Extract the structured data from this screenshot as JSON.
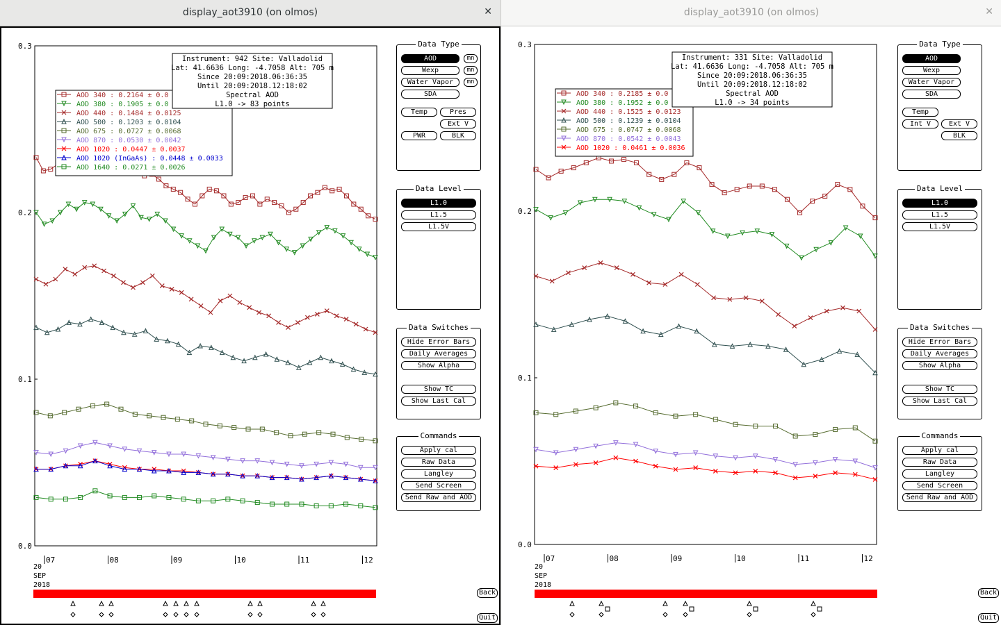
{
  "windows": [
    {
      "title": "display_aot3910 (on olmos)",
      "close_icon": "✕",
      "active": true,
      "info": [
        "Instrument: 942 Site: Valladolid",
        "Lat: 41.6636 Long: -4.7058 Alt: 705 m",
        "Since 20:09:2018.06:36:35",
        "Until 20:09:2018.12:18:02",
        "Spectral AOD",
        "L1.0 -> 83 points"
      ],
      "legend": [
        {
          "label": "AOD 340  : 0.2164 ± 0.0",
          "color": "#a52a2a",
          "marker": "square"
        },
        {
          "label": "AOD 380  : 0.1905 ± 0.0",
          "color": "#228b22",
          "marker": "tri-down"
        },
        {
          "label": "AOD 440  : 0.1484 ± 0.0125",
          "color": "#a52a2a",
          "marker": "x"
        },
        {
          "label": "AOD 500  : 0.1203 ± 0.0104",
          "color": "#2f4f4f",
          "marker": "tri-up"
        },
        {
          "label": "AOD 675  : 0.0727 ± 0.0068",
          "color": "#556b2f",
          "marker": "square"
        },
        {
          "label": "AOD 870  : 0.0530 ± 0.0042",
          "color": "#9370db",
          "marker": "tri-down"
        },
        {
          "label": "AOD 1020  : 0.0447 ± 0.0037",
          "color": "#ff0000",
          "marker": "x"
        },
        {
          "label": "AOD 1020 (InGaAs)  : 0.0448 ± 0.0033",
          "color": "#0000cd",
          "marker": "tri-up"
        },
        {
          "label": "AOD 1640  : 0.0271 ± 0.0026",
          "color": "#228b22",
          "marker": "square"
        }
      ],
      "data_type": {
        "title": "Data Type",
        "aod": "AOD",
        "wexp": "Wexp",
        "water_vapor": "Water Vapor",
        "sda": "SDA",
        "mn": "mn",
        "temp": "Temp",
        "pres": "Pres",
        "ext_v": "Ext V",
        "pwr": "PWR",
        "blk": "BLK"
      },
      "data_level": {
        "title": "Data Level",
        "items": [
          "L1.0",
          "L1.5",
          "L1.5V"
        ]
      },
      "data_switches": {
        "title": "Data Switches",
        "items": [
          "Hide Error Bars",
          "Daily Averages",
          "Show Alpha",
          "Show TC",
          "Show Last Cal"
        ]
      },
      "commands": {
        "title": "Commands",
        "items": [
          "Apply cal",
          "Raw Data",
          "Langley",
          "Send Screen",
          "Send Raw and AOD"
        ]
      },
      "date": {
        "day": "20",
        "month": "SEP",
        "year": "2018"
      },
      "back": "Back",
      "quit": "Quit"
    },
    {
      "title": "display_aot3910 (on olmos)",
      "close_icon": "✕",
      "active": false,
      "info": [
        "Instrument: 331 Site: Valladolid",
        "Lat: 41.6636 Long: -4.7058 Alt: 705 m",
        "Since 20:09:2018.06:36:35",
        "Until 20:09:2018.12:18:02",
        "Spectral AOD",
        "L1.0 -> 34 points"
      ],
      "legend": [
        {
          "label": "AOD 340  : 0.2185 ± 0.0",
          "color": "#a52a2a",
          "marker": "square"
        },
        {
          "label": "AOD 380  : 0.1952 ± 0.0",
          "color": "#228b22",
          "marker": "tri-down"
        },
        {
          "label": "AOD 440  : 0.1525 ± 0.0123",
          "color": "#a52a2a",
          "marker": "x"
        },
        {
          "label": "AOD 500  : 0.1239 ± 0.0104",
          "color": "#2f4f4f",
          "marker": "tri-up"
        },
        {
          "label": "AOD 675  : 0.0747 ± 0.0068",
          "color": "#556b2f",
          "marker": "square"
        },
        {
          "label": "AOD 870  : 0.0542 ± 0.0043",
          "color": "#9370db",
          "marker": "tri-down"
        },
        {
          "label": "AOD 1020  : 0.0461 ± 0.0036",
          "color": "#ff0000",
          "marker": "x"
        }
      ],
      "data_type": {
        "title": "Data Type",
        "aod": "AOD",
        "wexp": "Wexp",
        "water_vapor": "Water Vapor",
        "sda": "SDA",
        "temp": "Temp",
        "int_v": "Int V",
        "ext_v": "Ext V",
        "blk": "BLK"
      },
      "data_level": {
        "title": "Data Level",
        "items": [
          "L1.0",
          "L1.5",
          "L1.5V"
        ]
      },
      "data_switches": {
        "title": "Data Switches",
        "items": [
          "Hide Error Bars",
          "Daily Averages",
          "Show Alpha",
          "Show TC",
          "Show Last Cal"
        ]
      },
      "commands": {
        "title": "Commands",
        "items": [
          "Apply cal",
          "Raw Data",
          "Langley",
          "Send Screen",
          "Send Raw and AOD"
        ]
      },
      "date": {
        "day": "20",
        "month": "SEP",
        "year": "2018"
      },
      "back": "Back",
      "quit": "Quit"
    }
  ],
  "chart_data": [
    {
      "type": "line",
      "yticks": [
        "0.3",
        "0.2",
        "0.1",
        "0.0"
      ],
      "ylim": [
        0,
        0.3
      ],
      "xticks": [
        "07",
        "08",
        "09",
        "10",
        "11",
        "12"
      ],
      "series": [
        {
          "name": "AOD 340",
          "color": "#a52a2a",
          "marker": "square",
          "y": [
            0.233,
            0.225,
            0.226,
            0.229,
            0.232,
            0.229,
            0.231,
            0.23,
            0.228,
            0.224,
            0.225,
            0.224,
            0.228,
            0.232,
            0.226,
            0.222,
            0.223,
            0.22,
            0.216,
            0.214,
            0.212,
            0.208,
            0.205,
            0.21,
            0.214,
            0.213,
            0.21,
            0.205,
            0.206,
            0.209,
            0.21,
            0.205,
            0.208,
            0.206,
            0.204,
            0.2,
            0.202,
            0.206,
            0.21,
            0.212,
            0.215,
            0.213,
            0.214,
            0.21,
            0.205,
            0.202,
            0.198,
            0.196
          ]
        },
        {
          "name": "AOD 380",
          "color": "#228b22",
          "marker": "tri-down",
          "y": [
            0.2,
            0.193,
            0.195,
            0.2,
            0.205,
            0.202,
            0.206,
            0.205,
            0.202,
            0.198,
            0.195,
            0.199,
            0.204,
            0.197,
            0.196,
            0.199,
            0.195,
            0.19,
            0.186,
            0.183,
            0.18,
            0.177,
            0.185,
            0.19,
            0.187,
            0.185,
            0.18,
            0.183,
            0.185,
            0.187,
            0.182,
            0.178,
            0.176,
            0.18,
            0.184,
            0.188,
            0.191,
            0.189,
            0.186,
            0.182,
            0.178,
            0.175,
            0.173
          ]
        },
        {
          "name": "AOD 440",
          "color": "#a52a2a",
          "marker": "x",
          "y": [
            0.16,
            0.157,
            0.16,
            0.166,
            0.163,
            0.167,
            0.168,
            0.165,
            0.162,
            0.158,
            0.155,
            0.158,
            0.162,
            0.156,
            0.154,
            0.152,
            0.148,
            0.144,
            0.14,
            0.147,
            0.15,
            0.146,
            0.143,
            0.14,
            0.138,
            0.134,
            0.131,
            0.134,
            0.137,
            0.139,
            0.141,
            0.138,
            0.136,
            0.133,
            0.13,
            0.128
          ]
        },
        {
          "name": "AOD 500",
          "color": "#2f4f4f",
          "marker": "tri-up",
          "y": [
            0.131,
            0.128,
            0.13,
            0.134,
            0.133,
            0.136,
            0.134,
            0.131,
            0.128,
            0.127,
            0.129,
            0.124,
            0.123,
            0.121,
            0.116,
            0.12,
            0.119,
            0.116,
            0.113,
            0.111,
            0.113,
            0.115,
            0.112,
            0.11,
            0.107,
            0.11,
            0.113,
            0.111,
            0.109,
            0.106,
            0.104,
            0.103
          ]
        },
        {
          "name": "AOD 675",
          "color": "#556b2f",
          "marker": "square",
          "y": [
            0.08,
            0.078,
            0.08,
            0.082,
            0.084,
            0.085,
            0.082,
            0.079,
            0.078,
            0.077,
            0.076,
            0.075,
            0.073,
            0.072,
            0.071,
            0.07,
            0.07,
            0.068,
            0.066,
            0.067,
            0.068,
            0.067,
            0.065,
            0.064,
            0.063
          ]
        },
        {
          "name": "AOD 870",
          "color": "#9370db",
          "marker": "tri-down",
          "y": [
            0.056,
            0.055,
            0.057,
            0.06,
            0.062,
            0.06,
            0.058,
            0.057,
            0.056,
            0.055,
            0.055,
            0.054,
            0.053,
            0.052,
            0.051,
            0.051,
            0.05,
            0.049,
            0.048,
            0.049,
            0.05,
            0.049,
            0.047,
            0.047
          ]
        },
        {
          "name": "AOD 1020",
          "color": "#ff0000",
          "marker": "x",
          "y": [
            0.046,
            0.046,
            0.048,
            0.049,
            0.051,
            0.049,
            0.047,
            0.046,
            0.046,
            0.045,
            0.045,
            0.044,
            0.043,
            0.043,
            0.042,
            0.042,
            0.041,
            0.041,
            0.04,
            0.041,
            0.042,
            0.041,
            0.04,
            0.039
          ]
        },
        {
          "name": "AOD 1020 (InGaAs)",
          "color": "#0000cd",
          "marker": "tri-up",
          "y": [
            0.046,
            0.046,
            0.048,
            0.048,
            0.051,
            0.048,
            0.046,
            0.046,
            0.045,
            0.045,
            0.044,
            0.044,
            0.043,
            0.043,
            0.042,
            0.042,
            0.041,
            0.041,
            0.04,
            0.041,
            0.042,
            0.041,
            0.04,
            0.039
          ]
        },
        {
          "name": "AOD 1640",
          "color": "#228b22",
          "marker": "square",
          "y": [
            0.029,
            0.028,
            0.028,
            0.029,
            0.033,
            0.03,
            0.029,
            0.029,
            0.03,
            0.029,
            0.028,
            0.027,
            0.027,
            0.028,
            0.027,
            0.026,
            0.025,
            0.025,
            0.025,
            0.024,
            0.024,
            0.025,
            0.024,
            0.023
          ]
        }
      ]
    },
    {
      "type": "line",
      "yticks": [
        "0.3",
        "0.2",
        "0.1",
        "0.0"
      ],
      "ylim": [
        0,
        0.3
      ],
      "xticks": [
        "07",
        "08",
        "09",
        "10",
        "11",
        "12"
      ],
      "series": [
        {
          "name": "AOD 340",
          "color": "#a52a2a",
          "marker": "square",
          "y": [
            0.225,
            0.22,
            0.224,
            0.226,
            0.229,
            0.232,
            0.23,
            0.231,
            0.229,
            0.222,
            0.219,
            0.222,
            0.229,
            0.226,
            0.216,
            0.211,
            0.213,
            0.215,
            0.215,
            0.213,
            0.207,
            0.199,
            0.206,
            0.209,
            0.216,
            0.213,
            0.203,
            0.196
          ]
        },
        {
          "name": "AOD 380",
          "color": "#228b22",
          "marker": "tri-down",
          "y": [
            0.201,
            0.196,
            0.199,
            0.205,
            0.207,
            0.207,
            0.206,
            0.202,
            0.198,
            0.195,
            0.206,
            0.199,
            0.188,
            0.185,
            0.187,
            0.188,
            0.186,
            0.179,
            0.172,
            0.177,
            0.181,
            0.19,
            0.185,
            0.173
          ]
        },
        {
          "name": "AOD 440",
          "color": "#a52a2a",
          "marker": "x",
          "y": [
            0.161,
            0.158,
            0.163,
            0.166,
            0.169,
            0.166,
            0.162,
            0.157,
            0.156,
            0.162,
            0.156,
            0.148,
            0.147,
            0.148,
            0.146,
            0.138,
            0.131,
            0.136,
            0.14,
            0.142,
            0.14,
            0.129
          ]
        },
        {
          "name": "AOD 500",
          "color": "#2f4f4f",
          "marker": "tri-up",
          "y": [
            0.132,
            0.129,
            0.132,
            0.135,
            0.137,
            0.134,
            0.128,
            0.126,
            0.131,
            0.128,
            0.12,
            0.119,
            0.12,
            0.119,
            0.117,
            0.108,
            0.111,
            0.116,
            0.114,
            0.103
          ]
        },
        {
          "name": "AOD 675",
          "color": "#556b2f",
          "marker": "square",
          "y": [
            0.079,
            0.078,
            0.08,
            0.082,
            0.085,
            0.083,
            0.079,
            0.077,
            0.078,
            0.075,
            0.072,
            0.071,
            0.071,
            0.065,
            0.066,
            0.069,
            0.07,
            0.062
          ]
        },
        {
          "name": "AOD 870",
          "color": "#9370db",
          "marker": "tri-down",
          "y": [
            0.057,
            0.055,
            0.057,
            0.059,
            0.061,
            0.06,
            0.056,
            0.054,
            0.055,
            0.053,
            0.052,
            0.053,
            0.051,
            0.048,
            0.049,
            0.051,
            0.05,
            0.046
          ]
        },
        {
          "name": "AOD 1020",
          "color": "#ff0000",
          "marker": "x",
          "y": [
            0.047,
            0.046,
            0.048,
            0.049,
            0.052,
            0.05,
            0.047,
            0.045,
            0.046,
            0.044,
            0.043,
            0.044,
            0.043,
            0.04,
            0.041,
            0.043,
            0.042,
            0.039
          ]
        }
      ]
    }
  ]
}
